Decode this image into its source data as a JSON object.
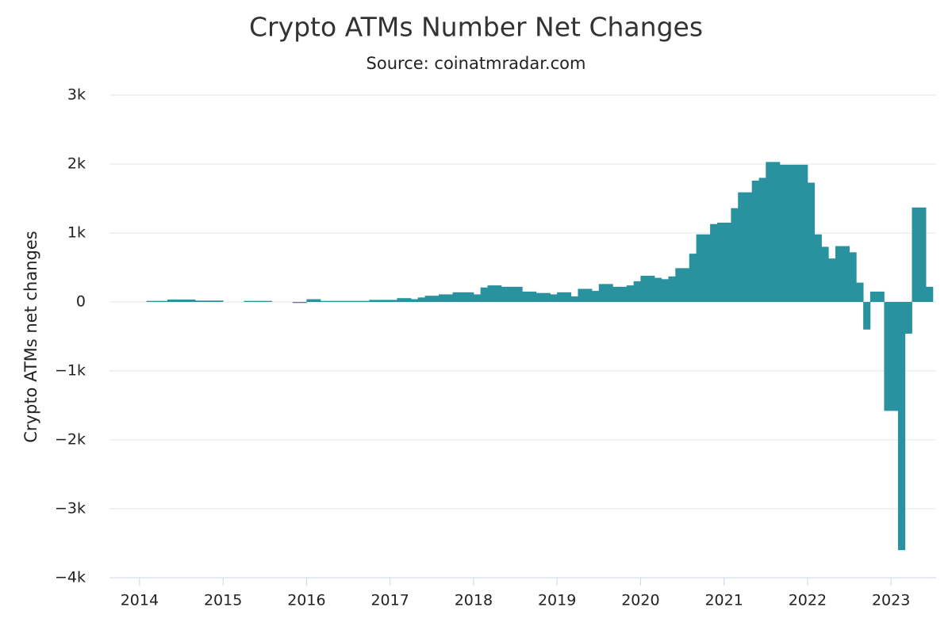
{
  "chart_data": {
    "type": "bar",
    "title": "Crypto ATMs Number Net Changes",
    "subtitle": "Source: coinatmradar.com",
    "y_label": "Crypto ATMs net changes",
    "color": "#2a919f",
    "grid": true,
    "xlim": [
      2013.64,
      2023.54
    ],
    "xticks": [
      2014,
      2015,
      2016,
      2017,
      2018,
      2019,
      2020,
      2021,
      2022,
      2023
    ],
    "ylim": [
      -4000,
      3000
    ],
    "yticks": [
      {
        "value": -4000,
        "label": "−4k"
      },
      {
        "value": -3000,
        "label": "−3k"
      },
      {
        "value": -2000,
        "label": "−2k"
      },
      {
        "value": -1000,
        "label": "−1k"
      },
      0,
      {
        "value": 1000,
        "label": "1k"
      },
      {
        "value": 2000,
        "label": "2k"
      },
      {
        "value": 3000,
        "label": "3k"
      }
    ],
    "x": [
      2014.083,
      2014.167,
      2014.25,
      2014.333,
      2014.417,
      2014.5,
      2014.583,
      2014.667,
      2014.75,
      2014.833,
      2014.917,
      2015.0,
      2015.083,
      2015.167,
      2015.25,
      2015.333,
      2015.417,
      2015.5,
      2015.583,
      2015.667,
      2015.75,
      2015.833,
      2015.917,
      2016.0,
      2016.083,
      2016.167,
      2016.25,
      2016.333,
      2016.417,
      2016.5,
      2016.583,
      2016.667,
      2016.75,
      2016.833,
      2016.917,
      2017.0,
      2017.083,
      2017.167,
      2017.25,
      2017.333,
      2017.417,
      2017.5,
      2017.583,
      2017.667,
      2017.75,
      2017.833,
      2017.917,
      2018.0,
      2018.083,
      2018.167,
      2018.25,
      2018.333,
      2018.417,
      2018.5,
      2018.583,
      2018.667,
      2018.75,
      2018.833,
      2018.917,
      2019.0,
      2019.083,
      2019.167,
      2019.25,
      2019.333,
      2019.417,
      2019.5,
      2019.583,
      2019.667,
      2019.75,
      2019.833,
      2019.917,
      2020.0,
      2020.083,
      2020.167,
      2020.25,
      2020.333,
      2020.417,
      2020.5,
      2020.583,
      2020.667,
      2020.75,
      2020.833,
      2020.917,
      2021.0,
      2021.083,
      2021.167,
      2021.25,
      2021.333,
      2021.417,
      2021.5,
      2021.583,
      2021.667,
      2021.75,
      2021.833,
      2021.917,
      2022.0,
      2022.083,
      2022.167,
      2022.25,
      2022.333,
      2022.417,
      2022.5,
      2022.583,
      2022.667,
      2022.75,
      2022.833,
      2022.917,
      2023.0,
      2023.083,
      2023.167,
      2023.25,
      2023.333,
      2023.417
    ],
    "values": [
      15,
      15,
      15,
      35,
      35,
      35,
      35,
      20,
      20,
      20,
      20,
      0,
      0,
      0,
      15,
      15,
      15,
      15,
      0,
      0,
      0,
      -15,
      -15,
      40,
      40,
      15,
      15,
      15,
      15,
      15,
      15,
      15,
      30,
      30,
      30,
      30,
      55,
      55,
      40,
      65,
      90,
      90,
      110,
      110,
      140,
      140,
      140,
      110,
      210,
      240,
      240,
      220,
      220,
      220,
      150,
      150,
      130,
      130,
      110,
      140,
      140,
      80,
      190,
      190,
      160,
      260,
      260,
      220,
      220,
      240,
      300,
      380,
      380,
      350,
      330,
      370,
      490,
      490,
      700,
      980,
      980,
      1130,
      1150,
      1150,
      1360,
      1590,
      1590,
      1760,
      1800,
      2030,
      2030,
      1990,
      1990,
      1990,
      1990,
      1730,
      980,
      800,
      630,
      810,
      810,
      720,
      280,
      -400,
      150,
      150,
      -1580,
      -1580,
      -3600,
      -460,
      1370,
      1370,
      220
    ]
  }
}
